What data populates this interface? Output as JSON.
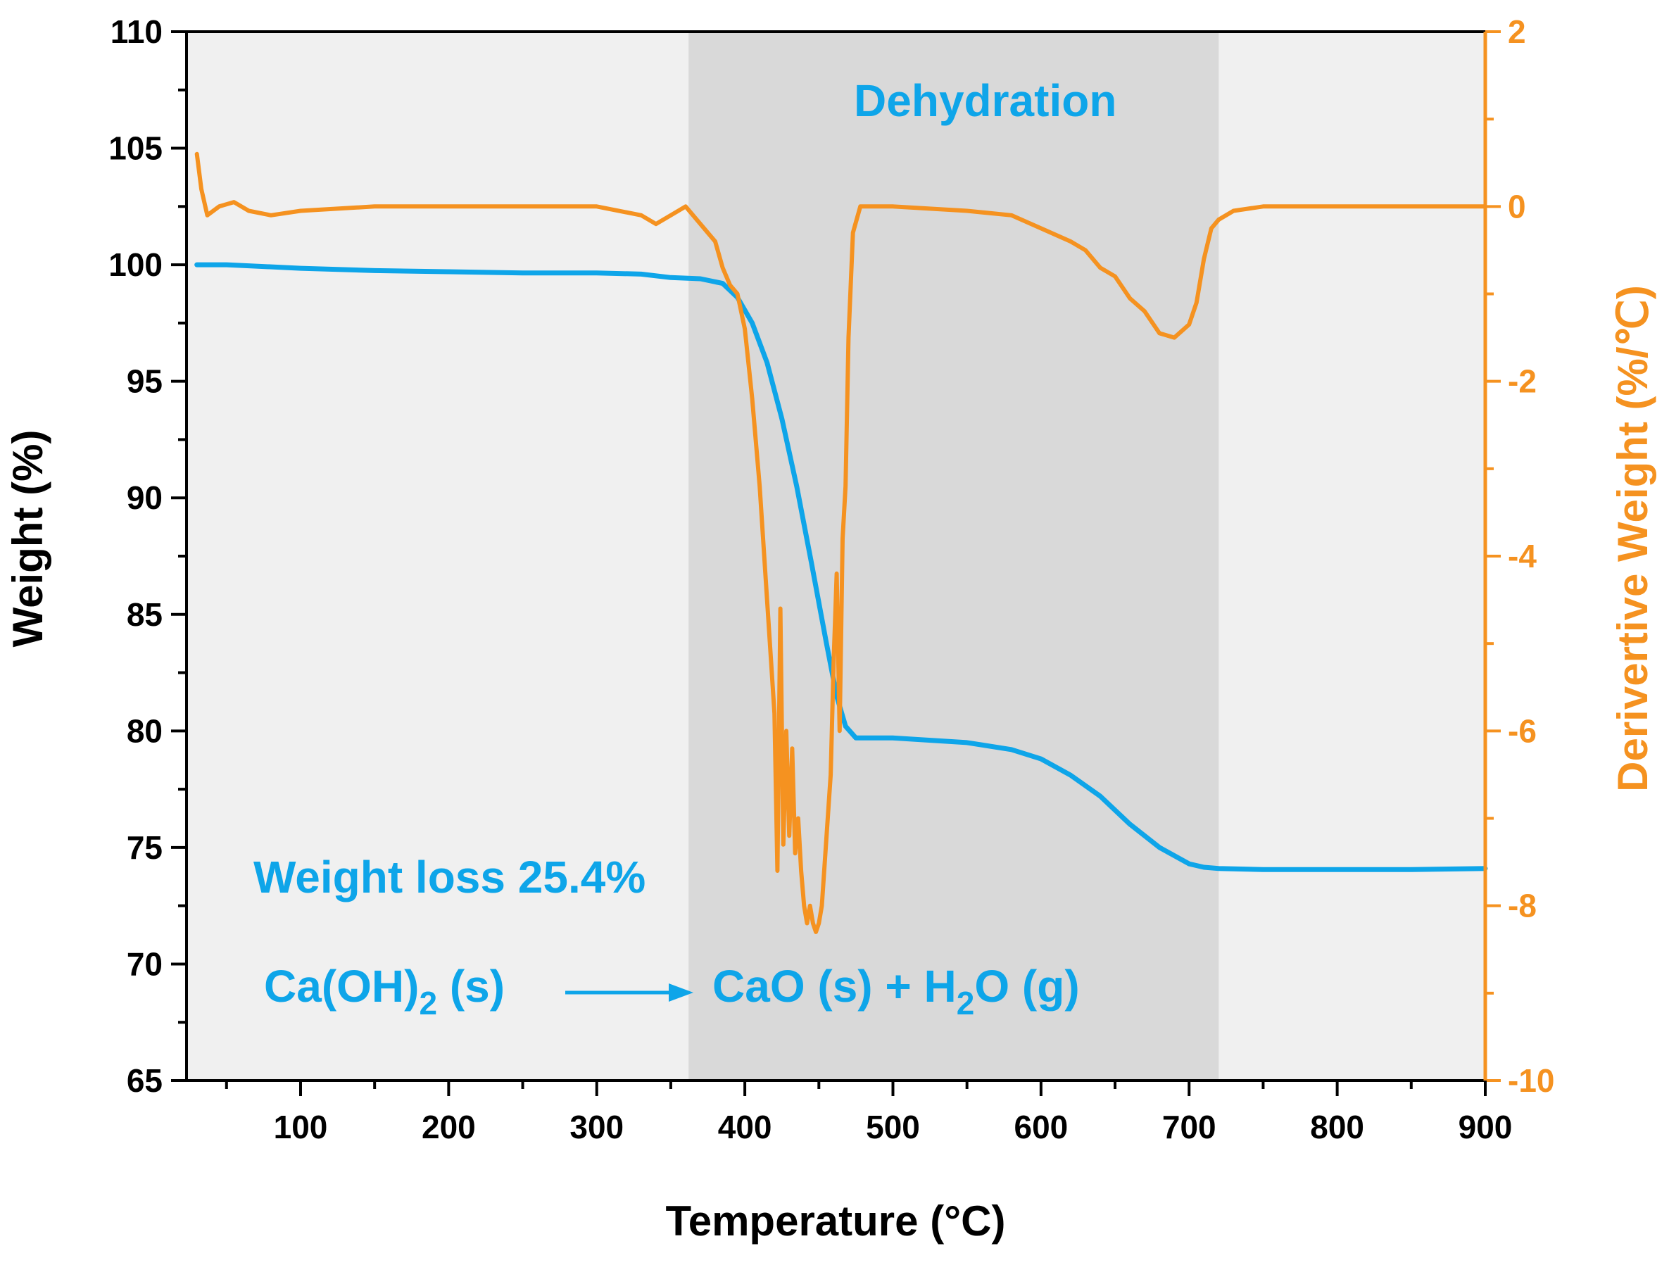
{
  "colors": {
    "weight_series": "#0ea5e9",
    "derivative_series": "#f59220",
    "outer_band": "#f0f0f0",
    "dehydration_band": "#d9d9d9",
    "axis": "#000000"
  },
  "chart_data": {
    "type": "line",
    "xlabel": "Temperature (°C)",
    "ylabel": "Weight (%)",
    "y2label": "Derivertive Weight (%/℃)",
    "xlim": [
      23,
      900
    ],
    "ylim": [
      65,
      110
    ],
    "y2lim": [
      -10,
      2
    ],
    "x_ticks": [
      100,
      200,
      300,
      400,
      500,
      600,
      700,
      800,
      900
    ],
    "y_ticks": [
      65,
      70,
      75,
      80,
      85,
      90,
      95,
      100,
      105,
      110
    ],
    "y2_ticks": [
      -10,
      -8,
      -6,
      -4,
      -2,
      0,
      2
    ],
    "shaded_region": {
      "label": "Dehydration",
      "x_range": [
        362,
        720
      ]
    },
    "annotations": {
      "weight_loss": "Weight loss 25.4%",
      "reactant": "Ca(OH)",
      "reactant_sub": "2",
      "reactant_state": " (s)",
      "product_1": "CaO (s) + H",
      "product_sub": "2",
      "product_2": "O (g)"
    },
    "series": [
      {
        "name": "Weight",
        "axis": "left",
        "x": [
          30,
          50,
          100,
          150,
          200,
          250,
          300,
          330,
          350,
          370,
          385,
          395,
          405,
          415,
          425,
          435,
          445,
          455,
          462,
          468,
          475,
          500,
          550,
          580,
          600,
          620,
          640,
          660,
          680,
          700,
          710,
          720,
          750,
          800,
          850,
          900
        ],
        "values": [
          100.0,
          100.0,
          99.85,
          99.75,
          99.7,
          99.65,
          99.65,
          99.6,
          99.45,
          99.4,
          99.2,
          98.6,
          97.5,
          95.8,
          93.4,
          90.5,
          87.2,
          83.8,
          81.5,
          80.2,
          79.7,
          79.7,
          79.5,
          79.2,
          78.8,
          78.1,
          77.2,
          76.0,
          75.0,
          74.3,
          74.15,
          74.1,
          74.05,
          74.05,
          74.05,
          74.1
        ]
      },
      {
        "name": "Derivative Weight",
        "axis": "right",
        "x": [
          30,
          33,
          37,
          45,
          55,
          65,
          80,
          100,
          150,
          200,
          250,
          300,
          330,
          340,
          350,
          360,
          370,
          380,
          385,
          390,
          395,
          400,
          405,
          410,
          415,
          420,
          422,
          424,
          426,
          428,
          430,
          432,
          434,
          436,
          438,
          440,
          442,
          444,
          446,
          448,
          450,
          452,
          454,
          456,
          458,
          460,
          462,
          464,
          466,
          468,
          470,
          473,
          478,
          500,
          550,
          580,
          600,
          620,
          630,
          640,
          650,
          660,
          670,
          680,
          690,
          700,
          705,
          710,
          715,
          720,
          730,
          750,
          800,
          850,
          900
        ],
        "values": [
          0.6,
          0.2,
          -0.1,
          0.0,
          0.05,
          -0.05,
          -0.1,
          -0.05,
          0.0,
          0.0,
          0.0,
          0.0,
          -0.1,
          -0.2,
          -0.1,
          0.0,
          -0.2,
          -0.4,
          -0.7,
          -0.9,
          -1.0,
          -1.4,
          -2.2,
          -3.2,
          -4.5,
          -5.8,
          -7.6,
          -4.6,
          -7.3,
          -6.0,
          -7.2,
          -6.2,
          -7.4,
          -7.0,
          -7.6,
          -8.0,
          -8.2,
          -8.0,
          -8.2,
          -8.3,
          -8.2,
          -8.0,
          -7.5,
          -7.0,
          -6.5,
          -5.2,
          -4.2,
          -6.0,
          -3.8,
          -3.2,
          -1.5,
          -0.3,
          0.0,
          0.0,
          -0.05,
          -0.1,
          -0.25,
          -0.4,
          -0.5,
          -0.7,
          -0.8,
          -1.05,
          -1.2,
          -1.45,
          -1.5,
          -1.35,
          -1.1,
          -0.6,
          -0.25,
          -0.15,
          -0.05,
          0.0,
          0.0,
          0.0,
          0.0
        ]
      }
    ]
  }
}
